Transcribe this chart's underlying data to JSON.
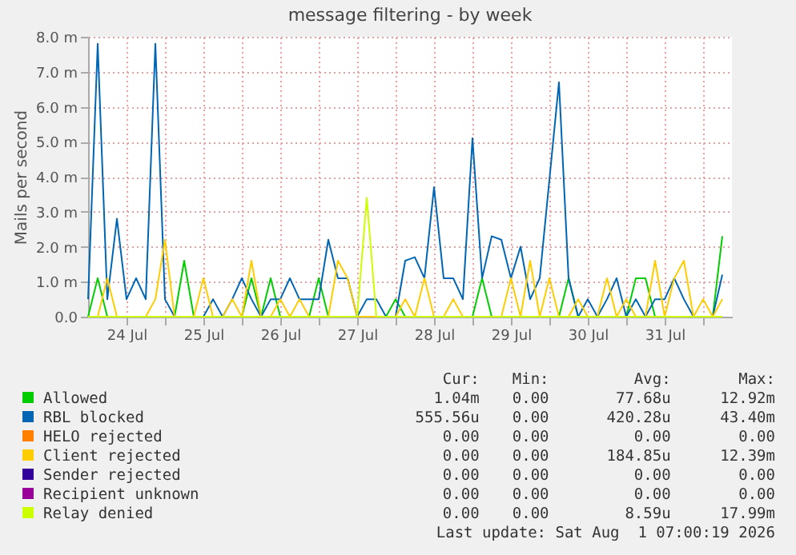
{
  "chart_data": {
    "type": "line",
    "title": "message filtering - by week",
    "ylabel": "Mails per second",
    "x": [
      "2026-07-24T00:00",
      "2026-07-24T03:00",
      "2026-07-24T06:00",
      "2026-07-24T09:00",
      "2026-07-24T12:00",
      "2026-07-24T15:00",
      "2026-07-24T18:00",
      "2026-07-24T21:00",
      "2026-07-25T00:00",
      "2026-07-25T03:00",
      "2026-07-25T06:00",
      "2026-07-25T09:00",
      "2026-07-25T12:00",
      "2026-07-25T15:00",
      "2026-07-25T18:00",
      "2026-07-25T21:00",
      "2026-07-26T00:00",
      "2026-07-26T03:00",
      "2026-07-26T06:00",
      "2026-07-26T09:00",
      "2026-07-26T12:00",
      "2026-07-26T15:00",
      "2026-07-26T18:00",
      "2026-07-26T21:00",
      "2026-07-27T00:00",
      "2026-07-27T03:00",
      "2026-07-27T06:00",
      "2026-07-27T09:00",
      "2026-07-27T12:00",
      "2026-07-27T15:00",
      "2026-07-27T18:00",
      "2026-07-27T21:00",
      "2026-07-28T00:00",
      "2026-07-28T03:00",
      "2026-07-28T06:00",
      "2026-07-28T09:00",
      "2026-07-28T12:00",
      "2026-07-28T15:00",
      "2026-07-28T18:00",
      "2026-07-28T21:00",
      "2026-07-29T00:00",
      "2026-07-29T03:00",
      "2026-07-29T06:00",
      "2026-07-29T09:00",
      "2026-07-29T12:00",
      "2026-07-29T15:00",
      "2026-07-29T18:00",
      "2026-07-29T21:00",
      "2026-07-30T00:00",
      "2026-07-30T03:00",
      "2026-07-30T06:00",
      "2026-07-30T09:00",
      "2026-07-30T12:00",
      "2026-07-30T15:00",
      "2026-07-30T18:00",
      "2026-07-30T21:00",
      "2026-07-31T00:00",
      "2026-07-31T03:00",
      "2026-07-31T06:00",
      "2026-07-31T09:00",
      "2026-07-31T12:00",
      "2026-07-31T15:00",
      "2026-07-31T18:00",
      "2026-07-31T21:00",
      "2026-08-01T00:00",
      "2026-08-01T03:00",
      "2026-08-01T06:00"
    ],
    "series": [
      {
        "name": "Allowed",
        "color": "#00cc00",
        "values": [
          0,
          1.1,
          0,
          0,
          0,
          0,
          0,
          0,
          0,
          0,
          1.6,
          0,
          0,
          0,
          0,
          0,
          0,
          1.1,
          0,
          1.1,
          0,
          0,
          0,
          0,
          1.1,
          0,
          0,
          0,
          0,
          0,
          0,
          0,
          0.5,
          0,
          0,
          0,
          0,
          0,
          0,
          0,
          0,
          1.1,
          0,
          0,
          0,
          0,
          0,
          0,
          0,
          0,
          1.1,
          0,
          0,
          0,
          0,
          0,
          0,
          1.1,
          1.1,
          0,
          0,
          0,
          0,
          0,
          0,
          0,
          2.3
        ]
      },
      {
        "name": "RBL blocked",
        "color": "#0066b3",
        "values": [
          0.5,
          7.8,
          0.5,
          2.8,
          0.5,
          1.1,
          0.5,
          7.8,
          0.5,
          0,
          0,
          0,
          0,
          0.5,
          0,
          0.5,
          1.1,
          0.5,
          0,
          0.5,
          0.5,
          1.1,
          0.5,
          0.5,
          0.5,
          2.2,
          1.1,
          1.1,
          0,
          0.5,
          0.5,
          0,
          0,
          1.6,
          1.7,
          1.1,
          3.7,
          1.1,
          1.1,
          0.5,
          5.1,
          1.1,
          2.3,
          2.2,
          1.1,
          2.0,
          0.5,
          1.1,
          3.9,
          6.7,
          1.1,
          0,
          0.5,
          0,
          0.5,
          1.1,
          0,
          0.5,
          0,
          0.5,
          0.5,
          1.1,
          0.5,
          0,
          0,
          0,
          1.2
        ]
      },
      {
        "name": "HELO rejected",
        "color": "#ff8000",
        "values": [
          null,
          null,
          null,
          null,
          null,
          null,
          null,
          null,
          null,
          null,
          null,
          null,
          null,
          null,
          null,
          null,
          null,
          null,
          null,
          null,
          null,
          null,
          null,
          null,
          null,
          null,
          null,
          null,
          null,
          null,
          null,
          null,
          null,
          null,
          null,
          null,
          null,
          null,
          null,
          null,
          null,
          null,
          null,
          null,
          null,
          null,
          null,
          null,
          null,
          null,
          null,
          null,
          null,
          null,
          null,
          null,
          null,
          null,
          null,
          null,
          null,
          null,
          null,
          null,
          null,
          null,
          null
        ]
      },
      {
        "name": "Client rejected",
        "color": "#ffcc00",
        "values": [
          0,
          0,
          1.1,
          0,
          0,
          0,
          0,
          0.5,
          2.2,
          0,
          0,
          0,
          1.1,
          0,
          0,
          0.5,
          0,
          1.6,
          0,
          0,
          0.5,
          0,
          0.5,
          0,
          0,
          0,
          1.6,
          1.1,
          0,
          0,
          0,
          0,
          0,
          0.5,
          0,
          1.1,
          0,
          0,
          0.5,
          0,
          0,
          0,
          0,
          0,
          1.1,
          0,
          1.6,
          0,
          1.1,
          0,
          0,
          0.5,
          0,
          0,
          1.1,
          0,
          0.5,
          0,
          0,
          1.6,
          0,
          1.1,
          1.6,
          0,
          0.5,
          0,
          0.5
        ]
      },
      {
        "name": "Sender rejected",
        "color": "#330099",
        "values": [
          null,
          null,
          null,
          null,
          null,
          null,
          null,
          null,
          null,
          null,
          null,
          null,
          null,
          null,
          null,
          null,
          null,
          null,
          null,
          null,
          null,
          null,
          null,
          null,
          null,
          null,
          null,
          null,
          null,
          null,
          null,
          null,
          null,
          null,
          null,
          null,
          null,
          null,
          null,
          null,
          null,
          null,
          null,
          null,
          null,
          null,
          null,
          null,
          null,
          null,
          null,
          null,
          null,
          null,
          null,
          null,
          null,
          null,
          null,
          null,
          null,
          null,
          null,
          null,
          null,
          null,
          null
        ]
      },
      {
        "name": "Recipient unknown",
        "color": "#990099",
        "values": [
          null,
          null,
          null,
          null,
          null,
          null,
          null,
          null,
          null,
          null,
          null,
          null,
          null,
          null,
          null,
          null,
          null,
          null,
          null,
          null,
          null,
          null,
          null,
          null,
          null,
          null,
          null,
          null,
          null,
          null,
          null,
          null,
          null,
          null,
          null,
          null,
          null,
          null,
          null,
          null,
          null,
          null,
          null,
          null,
          null,
          null,
          null,
          null,
          null,
          null,
          null,
          null,
          null,
          null,
          null,
          null,
          null,
          null,
          null,
          null,
          null,
          null,
          null,
          null,
          null,
          null,
          null
        ]
      },
      {
        "name": "Relay denied",
        "color": "#ccff00",
        "values": [
          0,
          0,
          0,
          0,
          0,
          0,
          0,
          0,
          0,
          0,
          0,
          0,
          0,
          0,
          0,
          0,
          0,
          0,
          0,
          0,
          0,
          0,
          0,
          0,
          0,
          0,
          0,
          0,
          0,
          3.4,
          0,
          0,
          0,
          0,
          0,
          0,
          0,
          0,
          0,
          0,
          0,
          0,
          0,
          0,
          0,
          0,
          0,
          0,
          0,
          0,
          0,
          0,
          0,
          0,
          0,
          0,
          0,
          0,
          0,
          0,
          0,
          0,
          0,
          0,
          0,
          0,
          0
        ]
      }
    ],
    "xlim": [
      "2026-07-24T00:00",
      "2026-08-01T09:00"
    ],
    "xticks": [
      {
        "value": "2026-07-24T12:00",
        "label": "24 Jul"
      },
      {
        "value": "2026-07-25T00:00",
        "label": null
      },
      {
        "value": "2026-07-25T12:00",
        "label": "25 Jul"
      },
      {
        "value": "2026-07-26T00:00",
        "label": null
      },
      {
        "value": "2026-07-26T12:00",
        "label": "26 Jul"
      },
      {
        "value": "2026-07-27T00:00",
        "label": null
      },
      {
        "value": "2026-07-27T12:00",
        "label": "27 Jul"
      },
      {
        "value": "2026-07-28T00:00",
        "label": null
      },
      {
        "value": "2026-07-28T12:00",
        "label": "28 Jul"
      },
      {
        "value": "2026-07-29T00:00",
        "label": null
      },
      {
        "value": "2026-07-29T12:00",
        "label": "29 Jul"
      },
      {
        "value": "2026-07-30T00:00",
        "label": null
      },
      {
        "value": "2026-07-30T12:00",
        "label": "30 Jul"
      },
      {
        "value": "2026-07-31T00:00",
        "label": null
      },
      {
        "value": "2026-07-31T12:00",
        "label": "31 Jul"
      },
      {
        "value": "2026-08-01T00:00",
        "label": null
      }
    ],
    "ylim": [
      0,
      8
    ],
    "yticks": [
      {
        "value": 0,
        "label": "0.0"
      },
      {
        "value": 1,
        "label": "1.0 m"
      },
      {
        "value": 2,
        "label": "2.0 m"
      },
      {
        "value": 3,
        "label": "3.0 m"
      },
      {
        "value": 4,
        "label": "4.0 m"
      },
      {
        "value": 5,
        "label": "5.0 m"
      },
      {
        "value": 6,
        "label": "6.0 m"
      },
      {
        "value": 7,
        "label": "7.0 m"
      },
      {
        "value": 8,
        "label": "8.0 m"
      }
    ],
    "grid": true,
    "legend": "bottom",
    "annotations": [
      "Cur:",
      "Min:",
      "Avg:",
      "Max:",
      "1.04m",
      "0.00",
      "77.68u",
      "12.92m",
      "555.56u",
      "0.00",
      "420.28u",
      "43.40m",
      "0.00",
      "0.00",
      "0.00",
      "0.00",
      "0.00",
      "0.00",
      "184.85u",
      "12.39m",
      "0.00",
      "0.00",
      "0.00",
      "0.00",
      "0.00",
      "0.00",
      "0.00",
      "0.00",
      "0.00",
      "0.00",
      "8.59u",
      "17.99m",
      "Last update: Sat Aug  1 07:00:19 2026"
    ]
  }
}
